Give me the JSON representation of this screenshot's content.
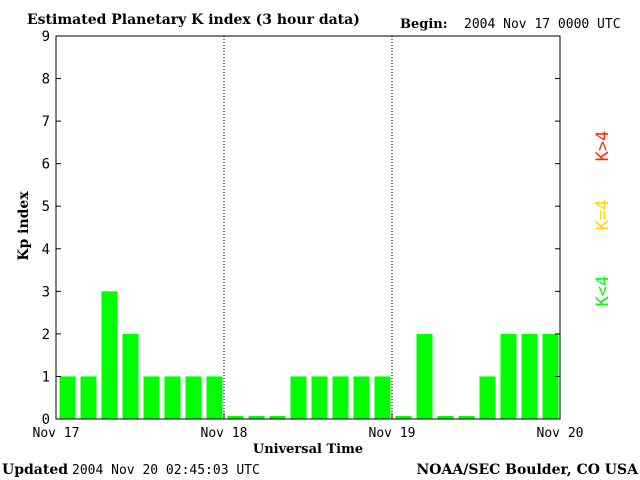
{
  "header": {
    "title": "Estimated Planetary K index (3 hour data)",
    "begin_label": "Begin:",
    "begin_value": "2004 Nov 17 0000 UTC"
  },
  "footer": {
    "updated_label": "Updated",
    "updated_value": "2004 Nov 20 02:45:03 UTC",
    "credit": "NOAA/SEC Boulder, CO USA"
  },
  "legend": {
    "items": [
      {
        "label": "K<4",
        "color": "#00ff00"
      },
      {
        "label": "K=4",
        "color": "#ffd400"
      },
      {
        "label": "K>4",
        "color": "#ff2a00"
      }
    ]
  },
  "chart_data": {
    "type": "bar",
    "title": "Estimated Planetary K index (3 hour data)",
    "xlabel": "Universal Time",
    "ylabel": "Kp index",
    "ylim": [
      0,
      9
    ],
    "yticks": [
      "0",
      "1",
      "2",
      "3",
      "4",
      "5",
      "6",
      "7",
      "8",
      "9"
    ],
    "xticks": [
      "Nov 17",
      "Nov 18",
      "Nov 19",
      "Nov 20"
    ],
    "bar_color": "#00ff00",
    "values": [
      1,
      1,
      3,
      2,
      1,
      1,
      1,
      1,
      0,
      0,
      0,
      1,
      1,
      1,
      1,
      1,
      0,
      2,
      0,
      0,
      1,
      2,
      2,
      2
    ]
  }
}
